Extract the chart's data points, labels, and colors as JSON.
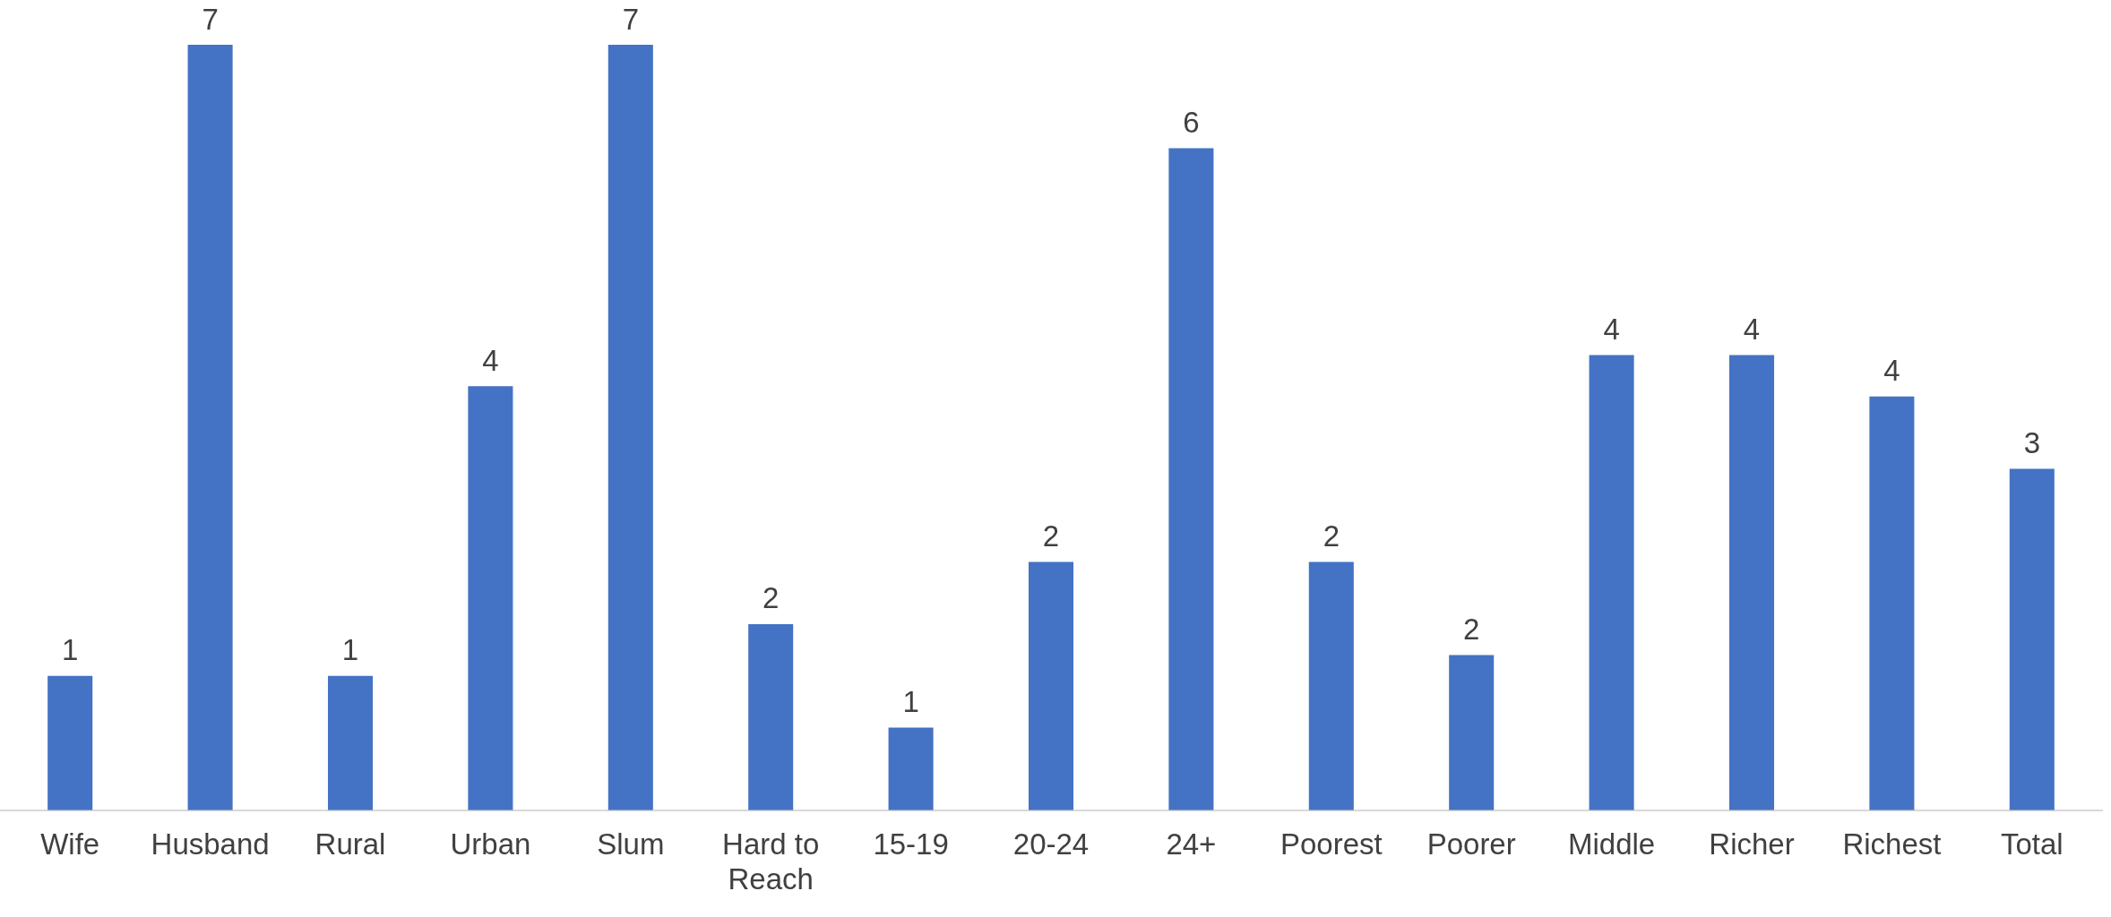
{
  "chart_data": {
    "type": "bar",
    "categories": [
      "Wife",
      "Husband",
      "Rural",
      "Urban",
      "Slum",
      "Hard to Reach",
      "15-19",
      "20-24",
      "24+",
      "Poorest",
      "Poorer",
      "Middle",
      "Richer",
      "Richest",
      "Total"
    ],
    "values": [
      1.3,
      7.4,
      1.3,
      4.1,
      7.4,
      1.8,
      0.8,
      2.4,
      6.4,
      2.4,
      1.5,
      4.4,
      4.4,
      4.0,
      3.3
    ],
    "value_labels": [
      "1",
      "7",
      "1",
      "4",
      "7",
      "2",
      "1",
      "2",
      "6",
      "2",
      "2",
      "4",
      "4",
      "4",
      "3"
    ],
    "color": "#4472c4",
    "tick_labels": "x",
    "grid": false,
    "legend": false
  }
}
